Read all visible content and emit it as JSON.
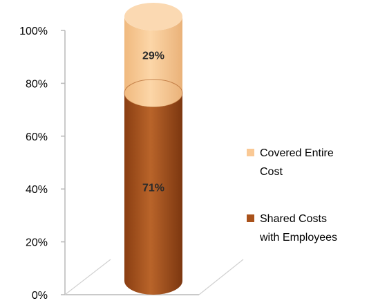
{
  "chart_data": {
    "type": "bar",
    "style": "3d-cylinder-stacked-100",
    "categories": [
      ""
    ],
    "series": [
      {
        "name": "Shared Costs with Employees",
        "values": [
          71
        ],
        "label": "71%",
        "color": "#A9521B"
      },
      {
        "name": "Covered Entire Cost",
        "values": [
          29
        ],
        "label": "29%",
        "color": "#FAC995"
      }
    ],
    "title": "",
    "xlabel": "",
    "ylabel": "",
    "ylim": [
      0,
      100
    ],
    "yticks": [
      "0%",
      "20%",
      "40%",
      "60%",
      "80%",
      "100%"
    ],
    "grid": false,
    "legend": {
      "position": "right",
      "entries": [
        {
          "lines": [
            "Covered Entire",
            "Cost"
          ],
          "color": "#FAC995"
        },
        {
          "lines": [
            "Shared Costs",
            "with Employees"
          ],
          "color": "#A9521B"
        }
      ]
    }
  }
}
